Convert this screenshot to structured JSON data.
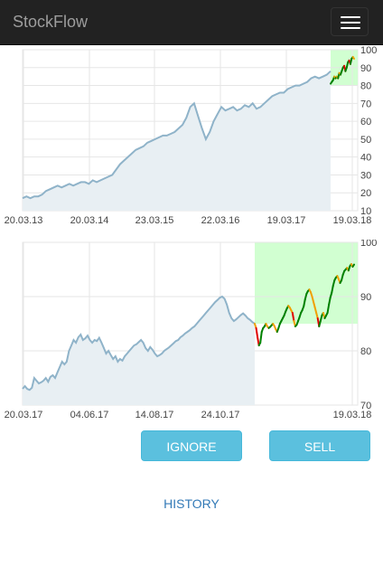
{
  "app": {
    "title": "StockFlow"
  },
  "navbar": {
    "menu_icon": "hamburger-menu-icon"
  },
  "colors": {
    "price_line": "#8fb3c9",
    "price_fill": "#e8eff3",
    "prediction_up": "#008000",
    "prediction_down": "#e00000",
    "prediction_neutral": "#f0a000",
    "target_zone": "#ccffcc",
    "button": "#5bc0de",
    "link": "#337ab7"
  },
  "chart_data": [
    {
      "type": "line",
      "x_tick_labels": [
        "20.03.13",
        "20.03.14",
        "23.03.15",
        "22.03.16",
        "19.03.17",
        "19.03.18"
      ],
      "y_ticks": [
        10,
        20,
        30,
        40,
        50,
        60,
        70,
        80,
        90,
        100
      ],
      "ylim": [
        10,
        100
      ],
      "grid": true,
      "series": [
        {
          "values": [
            17,
            18,
            17,
            18,
            18,
            19,
            21,
            22,
            23,
            24,
            23,
            24,
            25,
            24,
            25,
            26,
            26,
            25,
            27,
            26,
            27,
            28,
            29,
            30,
            33,
            36,
            38,
            40,
            42,
            44,
            45,
            46,
            48,
            49,
            50,
            51,
            52,
            52,
            53,
            54,
            56,
            58,
            62,
            68,
            70,
            63,
            56,
            50,
            54,
            60,
            64,
            68,
            66,
            67,
            68,
            66,
            67,
            69,
            68,
            70,
            67,
            68,
            70,
            72,
            74,
            75,
            76,
            76,
            78,
            79,
            80,
            80,
            81,
            82,
            84,
            85,
            84,
            85,
            86,
            88
          ]
        },
        {
          "values": [
            81,
            82,
            83,
            85,
            84,
            85,
            84,
            87,
            86,
            88,
            90,
            91,
            88,
            90,
            93,
            94,
            92,
            95,
            96,
            95
          ]
        }
      ],
      "highlight_band": [
        80,
        100
      ]
    },
    {
      "type": "line",
      "x_tick_labels": [
        "20.03.17",
        "04.06.17",
        "14.08.17",
        "24.10.17",
        "19.03.18"
      ],
      "y_ticks": [
        70,
        80,
        90,
        100
      ],
      "ylim": [
        70,
        100
      ],
      "grid": true,
      "series": [
        {
          "values": [
            73,
            73.5,
            73,
            72.8,
            73.2,
            75,
            74.5,
            74,
            74.2,
            74.5,
            75,
            74.3,
            75.2,
            75.5,
            75,
            76,
            77,
            78,
            77.5,
            78,
            80,
            81,
            82,
            81.5,
            82.5,
            83,
            82,
            82.3,
            82.8,
            82,
            81.5,
            82,
            81.8,
            82.4,
            81.5,
            80.5,
            79.5,
            80,
            79.2,
            78.5,
            79,
            78,
            78.5,
            78.2,
            79,
            79.5,
            80,
            80.5,
            81,
            81.2,
            81.6,
            82,
            81.5,
            80.5,
            80,
            80.7,
            80.2,
            79.5,
            79,
            79.2,
            79.5,
            80,
            80.3,
            80.6,
            81,
            81.4,
            81.8,
            82,
            82.5,
            82.8,
            83.2,
            83.5,
            83.8,
            84.2,
            84.5,
            85,
            85.5,
            86,
            86.5,
            87,
            87.5,
            88,
            88.5,
            89,
            89.4,
            89.8,
            90,
            89.6,
            88.5,
            87,
            86,
            85.5,
            85.8,
            86.2,
            86.6,
            86.9,
            86.5,
            86,
            85.7,
            85.3,
            85
          ]
        },
        {
          "values": [
            85,
            84.2,
            82.5,
            81,
            81.5,
            83.5,
            84.2,
            84.5,
            85,
            84.5,
            84.2,
            84.4,
            84.7,
            85,
            84.6,
            84,
            83.5,
            84.2,
            85,
            85.5,
            86,
            86.5,
            87.2,
            87.8,
            88.3,
            88,
            87.5,
            87,
            85.5,
            84.5,
            84.8,
            85.5,
            86.2,
            87,
            87.5,
            88.2,
            89.5,
            90.5,
            91,
            91.3,
            90.8,
            90,
            89,
            88,
            87,
            86,
            84.5,
            85.5,
            86.5,
            87,
            86,
            86.5,
            87,
            88.5,
            89.8,
            90.7,
            92,
            93,
            93.5,
            93.8,
            93.2,
            92.5,
            93,
            94,
            94.7,
            95,
            95.3,
            94.8,
            95.6,
            96,
            95.5,
            95.9
          ]
        }
      ],
      "highlight_band": [
        85,
        100
      ]
    }
  ],
  "actions": {
    "ignore_label": "IGNORE",
    "sell_label": "SELL"
  },
  "footer": {
    "history_label": "HISTORY"
  }
}
